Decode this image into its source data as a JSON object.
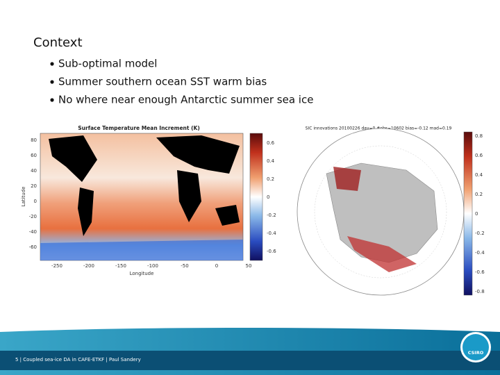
{
  "slide": {
    "title": "Context",
    "bullets": [
      "Sub-optimal model",
      "Summer southern ocean SST warm bias",
      "No where near enough Antarctic summer sea ice"
    ],
    "figure_left": {
      "title": "Surface Temperature Mean Increment (K)",
      "y_label": "Latitude",
      "x_label": "Longitude",
      "y_ticks": [
        "80",
        "60",
        "40",
        "20",
        "0",
        "-20",
        "-40",
        "-60"
      ],
      "x_ticks": [
        "-250",
        "-200",
        "-150",
        "-100",
        "-50",
        "0",
        "50"
      ],
      "colorbar_ticks": [
        "0.6",
        "0.4",
        "0.2",
        "0",
        "-0.2",
        "-0.4",
        "-0.6"
      ]
    },
    "figure_right": {
      "title": "SIC innovations 20100226 day=0 #obs=10602 bias=-0.12 mad=0.19",
      "colorbar_ticks": [
        "0.8",
        "0.6",
        "0.4",
        "0.2",
        "0",
        "-0.2",
        "-0.4",
        "-0.6",
        "-0.8"
      ]
    },
    "footer": "5  |  Coupled sea-ice DA in CAFE-ETKF  |  Paul Sandery",
    "logo": "CSIRO"
  }
}
